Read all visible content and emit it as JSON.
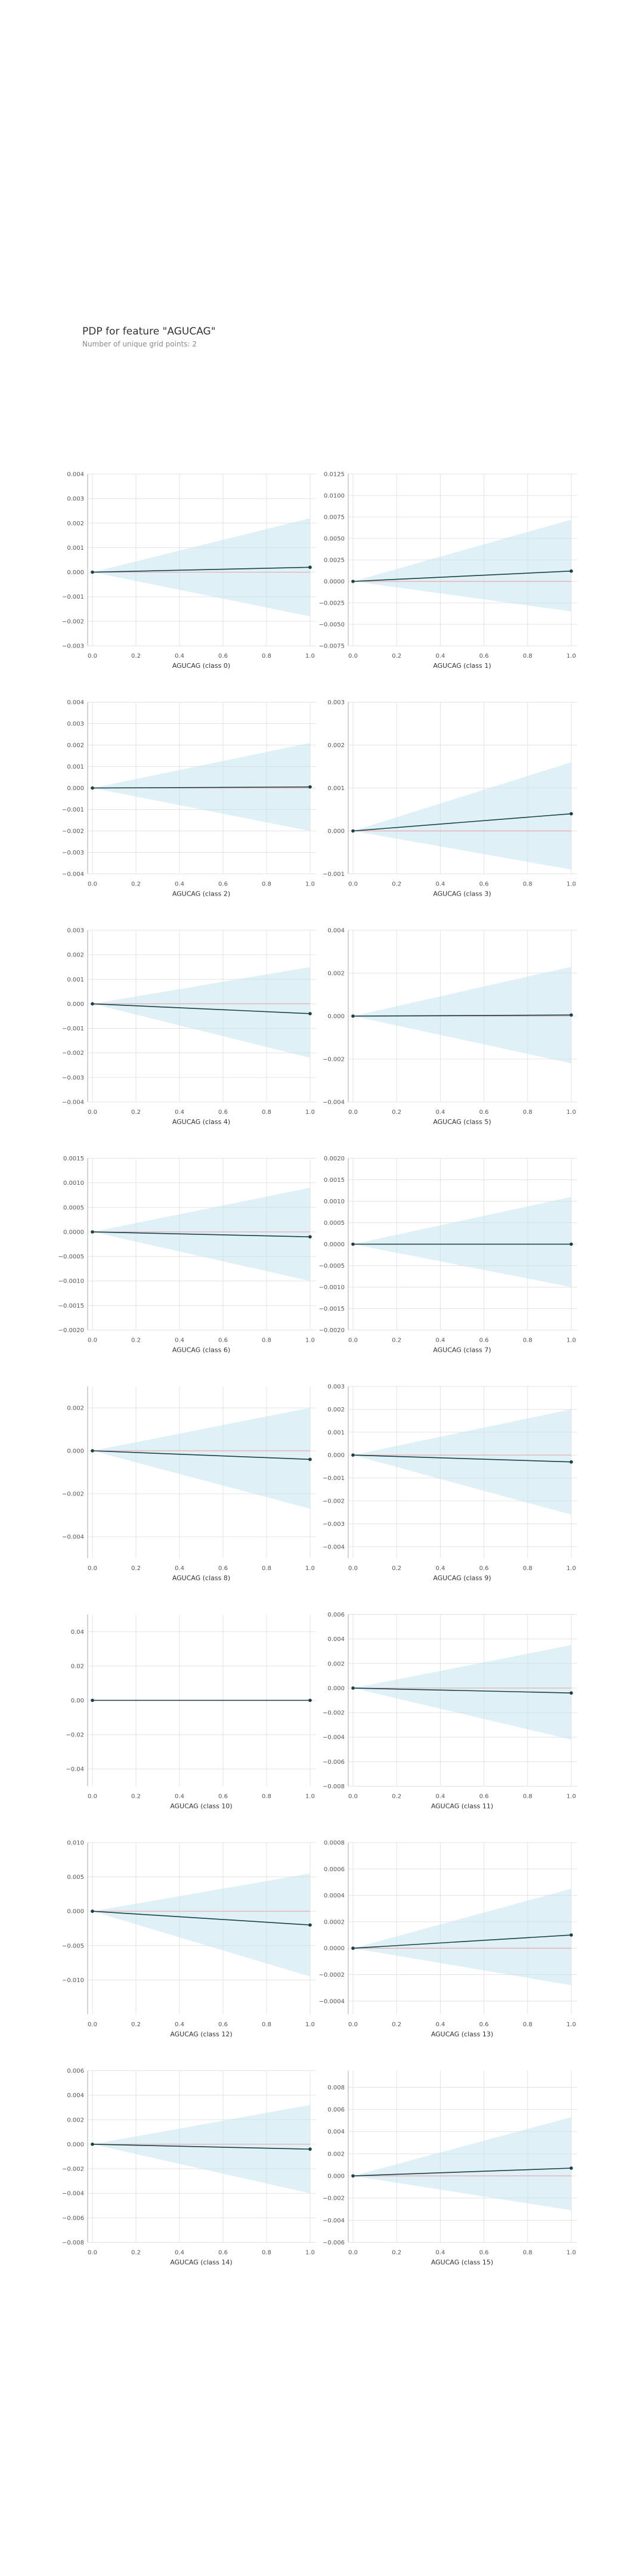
{
  "title": "PDP for feature \"AGUCAG\"",
  "subtitle": "Number of unique grid points: 2",
  "colors": {
    "line": "#1a4148",
    "band": "#bfe3ef",
    "zero": "#e8a9a9",
    "grid": "#e3e3e3",
    "axis": "#a9a9a9"
  },
  "chart_data": [
    {
      "type": "line",
      "xlabel": "AGUCAG (class 0)",
      "x": [
        0,
        1
      ],
      "y": [
        0.0,
        0.0002
      ],
      "band_lower": [
        0,
        -0.0018
      ],
      "band_upper": [
        0,
        0.0022
      ],
      "xticks": [
        0,
        0.2,
        0.4,
        0.6,
        0.8,
        1.0
      ],
      "xtick_labels": [
        "0.0",
        "0.2",
        "0.4",
        "0.6",
        "0.8",
        "1.0"
      ],
      "ylim": [
        -0.003,
        0.004
      ],
      "yticks": [
        -0.003,
        -0.002,
        -0.001,
        0,
        0.001,
        0.002,
        0.003,
        0.004
      ],
      "ytick_labels": [
        "−0.003",
        "−0.002",
        "−0.001",
        "0.000",
        "0.001",
        "0.002",
        "0.003",
        "0.004"
      ]
    },
    {
      "type": "line",
      "xlabel": "AGUCAG (class 1)",
      "x": [
        0,
        1
      ],
      "y": [
        0.0,
        0.0012
      ],
      "band_lower": [
        0,
        -0.0035
      ],
      "band_upper": [
        0,
        0.0072
      ],
      "xticks": [
        0,
        0.2,
        0.4,
        0.6,
        0.8,
        1.0
      ],
      "xtick_labels": [
        "0.0",
        "0.2",
        "0.4",
        "0.6",
        "0.8",
        "1.0"
      ],
      "ylim": [
        -0.0075,
        0.0125
      ],
      "yticks": [
        -0.0075,
        -0.005,
        -0.0025,
        0,
        0.0025,
        0.005,
        0.0075,
        0.01,
        0.0125
      ],
      "ytick_labels": [
        "−0.0075",
        "−0.0050",
        "−0.0025",
        "0.0000",
        "0.0025",
        "0.0050",
        "0.0075",
        "0.0100",
        "0.0125"
      ]
    },
    {
      "type": "line",
      "xlabel": "AGUCAG (class 2)",
      "x": [
        0,
        1
      ],
      "y": [
        0.0,
        5e-05
      ],
      "band_lower": [
        0,
        -0.002
      ],
      "band_upper": [
        0,
        0.0021
      ],
      "xticks": [
        0,
        0.2,
        0.4,
        0.6,
        0.8,
        1.0
      ],
      "xtick_labels": [
        "0.0",
        "0.2",
        "0.4",
        "0.6",
        "0.8",
        "1.0"
      ],
      "ylim": [
        -0.004,
        0.004
      ],
      "yticks": [
        -0.004,
        -0.003,
        -0.002,
        -0.001,
        0,
        0.001,
        0.002,
        0.003,
        0.004
      ],
      "ytick_labels": [
        "−0.004",
        "−0.003",
        "−0.002",
        "−0.001",
        "0.000",
        "0.001",
        "0.002",
        "0.003",
        "0.004"
      ]
    },
    {
      "type": "line",
      "xlabel": "AGUCAG (class 3)",
      "x": [
        0,
        1
      ],
      "y": [
        0.0,
        0.0004
      ],
      "band_lower": [
        0,
        -0.0009
      ],
      "band_upper": [
        0,
        0.0016
      ],
      "xticks": [
        0,
        0.2,
        0.4,
        0.6,
        0.8,
        1.0
      ],
      "xtick_labels": [
        "0.0",
        "0.2",
        "0.4",
        "0.6",
        "0.8",
        "1.0"
      ],
      "ylim": [
        -0.001,
        0.003
      ],
      "yticks": [
        -0.001,
        0,
        0.001,
        0.002,
        0.003
      ],
      "ytick_labels": [
        "−0.001",
        "0.000",
        "0.001",
        "0.002",
        "0.003"
      ]
    },
    {
      "type": "line",
      "xlabel": "AGUCAG (class 4)",
      "x": [
        0,
        1
      ],
      "y": [
        0.0,
        -0.0004
      ],
      "band_lower": [
        0,
        -0.0022
      ],
      "band_upper": [
        0,
        0.0015
      ],
      "xticks": [
        0,
        0.2,
        0.4,
        0.6,
        0.8,
        1.0
      ],
      "xtick_labels": [
        "0.0",
        "0.2",
        "0.4",
        "0.6",
        "0.8",
        "1.0"
      ],
      "ylim": [
        -0.004,
        0.003
      ],
      "yticks": [
        -0.004,
        -0.003,
        -0.002,
        -0.001,
        0,
        0.001,
        0.002,
        0.003
      ],
      "ytick_labels": [
        "−0.004",
        "−0.003",
        "−0.002",
        "−0.001",
        "0.000",
        "0.001",
        "0.002",
        "0.003"
      ]
    },
    {
      "type": "line",
      "xlabel": "AGUCAG (class 5)",
      "x": [
        0,
        1
      ],
      "y": [
        0.0,
        5e-05
      ],
      "band_lower": [
        0,
        -0.0022
      ],
      "band_upper": [
        0,
        0.0023
      ],
      "xticks": [
        0,
        0.2,
        0.4,
        0.6,
        0.8,
        1.0
      ],
      "xtick_labels": [
        "0.0",
        "0.2",
        "0.4",
        "0.6",
        "0.8",
        "1.0"
      ],
      "ylim": [
        -0.004,
        0.004
      ],
      "yticks": [
        -0.004,
        -0.002,
        0,
        0.002,
        0.004
      ],
      "ytick_labels": [
        "−0.004",
        "−0.002",
        "0.000",
        "0.002",
        "0.004"
      ]
    },
    {
      "type": "line",
      "xlabel": "AGUCAG (class 6)",
      "x": [
        0,
        1
      ],
      "y": [
        0.0,
        -0.0001
      ],
      "band_lower": [
        0,
        -0.001
      ],
      "band_upper": [
        0,
        0.0009
      ],
      "xticks": [
        0,
        0.2,
        0.4,
        0.6,
        0.8,
        1.0
      ],
      "xtick_labels": [
        "0.0",
        "0.2",
        "0.4",
        "0.6",
        "0.8",
        "1.0"
      ],
      "ylim": [
        -0.002,
        0.0015
      ],
      "yticks": [
        -0.002,
        -0.0015,
        -0.001,
        -0.0005,
        0,
        0.0005,
        0.001,
        0.0015
      ],
      "ytick_labels": [
        "−0.0020",
        "−0.0015",
        "−0.0010",
        "−0.0005",
        "0.0000",
        "0.0005",
        "0.0010",
        "0.0015"
      ]
    },
    {
      "type": "line",
      "xlabel": "AGUCAG (class 7)",
      "x": [
        0,
        1
      ],
      "y": [
        0.0,
        0.0
      ],
      "band_lower": [
        0,
        -0.001
      ],
      "band_upper": [
        0,
        0.0011
      ],
      "xticks": [
        0,
        0.2,
        0.4,
        0.6,
        0.8,
        1.0
      ],
      "xtick_labels": [
        "0.0",
        "0.2",
        "0.4",
        "0.6",
        "0.8",
        "1.0"
      ],
      "ylim": [
        -0.002,
        0.002
      ],
      "yticks": [
        -0.002,
        -0.0015,
        -0.001,
        -0.0005,
        0,
        0.0005,
        0.001,
        0.0015,
        0.002
      ],
      "ytick_labels": [
        "−0.0020",
        "−0.0015",
        "−0.0010",
        "−0.0005",
        "0.0000",
        "0.0005",
        "0.0010",
        "0.0015",
        "0.0020"
      ]
    },
    {
      "type": "line",
      "xlabel": "AGUCAG (class 8)",
      "x": [
        0,
        1
      ],
      "y": [
        0.0,
        -0.0004
      ],
      "band_lower": [
        0,
        -0.0027
      ],
      "band_upper": [
        0,
        0.002
      ],
      "xticks": [
        0,
        0.2,
        0.4,
        0.6,
        0.8,
        1.0
      ],
      "xtick_labels": [
        "0.0",
        "0.2",
        "0.4",
        "0.6",
        "0.8",
        "1.0"
      ],
      "ylim": [
        -0.005,
        0.003
      ],
      "yticks": [
        -0.004,
        -0.002,
        0,
        0.002
      ],
      "ytick_labels": [
        "−0.004",
        "−0.002",
        "0.000",
        "0.002"
      ]
    },
    {
      "type": "line",
      "xlabel": "AGUCAG (class 9)",
      "x": [
        0,
        1
      ],
      "y": [
        0.0,
        -0.0003
      ],
      "band_lower": [
        0,
        -0.0026
      ],
      "band_upper": [
        0,
        0.002
      ],
      "xticks": [
        0,
        0.2,
        0.4,
        0.6,
        0.8,
        1.0
      ],
      "xtick_labels": [
        "0.0",
        "0.2",
        "0.4",
        "0.6",
        "0.8",
        "1.0"
      ],
      "ylim": [
        -0.0045,
        0.003
      ],
      "yticks": [
        -0.004,
        -0.003,
        -0.002,
        -0.001,
        0,
        0.001,
        0.002,
        0.003
      ],
      "ytick_labels": [
        "−0.004",
        "−0.003",
        "−0.002",
        "−0.001",
        "0.000",
        "0.001",
        "0.002",
        "0.003"
      ]
    },
    {
      "type": "line",
      "xlabel": "AGUCAG (class 10)",
      "x": [
        0,
        1
      ],
      "y": [
        0.0,
        0.0
      ],
      "band_lower": [
        0,
        0.0
      ],
      "band_upper": [
        0,
        0.0
      ],
      "xticks": [
        0,
        0.2,
        0.4,
        0.6,
        0.8,
        1.0
      ],
      "xtick_labels": [
        "0.0",
        "0.2",
        "0.4",
        "0.6",
        "0.8",
        "1.0"
      ],
      "ylim": [
        -0.05,
        0.05
      ],
      "yticks": [
        -0.04,
        -0.02,
        0,
        0.02,
        0.04
      ],
      "ytick_labels": [
        "−0.04",
        "−0.02",
        "0.00",
        "0.02",
        "0.04"
      ]
    },
    {
      "type": "line",
      "xlabel": "AGUCAG (class 11)",
      "x": [
        0,
        1
      ],
      "y": [
        0.0,
        -0.0004
      ],
      "band_lower": [
        0,
        -0.0042
      ],
      "band_upper": [
        0,
        0.0035
      ],
      "xticks": [
        0,
        0.2,
        0.4,
        0.6,
        0.8,
        1.0
      ],
      "xtick_labels": [
        "0.0",
        "0.2",
        "0.4",
        "0.6",
        "0.8",
        "1.0"
      ],
      "ylim": [
        -0.008,
        0.006
      ],
      "yticks": [
        -0.008,
        -0.006,
        -0.004,
        -0.002,
        0,
        0.002,
        0.004,
        0.006
      ],
      "ytick_labels": [
        "−0.008",
        "−0.006",
        "−0.004",
        "−0.002",
        "0.000",
        "0.002",
        "0.004",
        "0.006"
      ]
    },
    {
      "type": "line",
      "xlabel": "AGUCAG (class 12)",
      "x": [
        0,
        1
      ],
      "y": [
        0.0,
        -0.002
      ],
      "band_lower": [
        0,
        -0.0095
      ],
      "band_upper": [
        0,
        0.0055
      ],
      "xticks": [
        0,
        0.2,
        0.4,
        0.6,
        0.8,
        1.0
      ],
      "xtick_labels": [
        "0.0",
        "0.2",
        "0.4",
        "0.6",
        "0.8",
        "1.0"
      ],
      "ylim": [
        -0.015,
        0.01
      ],
      "yticks": [
        -0.01,
        -0.005,
        0,
        0.005,
        0.01
      ],
      "ytick_labels": [
        "−0.010",
        "−0.005",
        "0.000",
        "0.005",
        "0.010"
      ]
    },
    {
      "type": "line",
      "xlabel": "AGUCAG (class 13)",
      "x": [
        0,
        1
      ],
      "y": [
        0.0,
        0.0001
      ],
      "band_lower": [
        0,
        -0.00028
      ],
      "band_upper": [
        0,
        0.00045
      ],
      "xticks": [
        0,
        0.2,
        0.4,
        0.6,
        0.8,
        1.0
      ],
      "xtick_labels": [
        "0.0",
        "0.2",
        "0.4",
        "0.6",
        "0.8",
        "1.0"
      ],
      "ylim": [
        -0.0005,
        0.0008
      ],
      "yticks": [
        -0.0004,
        -0.0002,
        0,
        0.0002,
        0.0004,
        0.0006,
        0.0008
      ],
      "ytick_labels": [
        "−0.0004",
        "−0.0002",
        "0.0000",
        "0.0002",
        "0.0004",
        "0.0006",
        "0.0008"
      ]
    },
    {
      "type": "line",
      "xlabel": "AGUCAG (class 14)",
      "x": [
        0,
        1
      ],
      "y": [
        0.0,
        -0.0004
      ],
      "band_lower": [
        0,
        -0.004
      ],
      "band_upper": [
        0,
        0.0032
      ],
      "xticks": [
        0,
        0.2,
        0.4,
        0.6,
        0.8,
        1.0
      ],
      "xtick_labels": [
        "0.0",
        "0.2",
        "0.4",
        "0.6",
        "0.8",
        "1.0"
      ],
      "ylim": [
        -0.008,
        0.006
      ],
      "yticks": [
        -0.008,
        -0.006,
        -0.004,
        -0.002,
        0,
        0.002,
        0.004,
        0.006
      ],
      "ytick_labels": [
        "−0.008",
        "−0.006",
        "−0.004",
        "−0.002",
        "0.000",
        "0.002",
        "0.004",
        "0.006"
      ]
    },
    {
      "type": "line",
      "xlabel": "AGUCAG (class 15)",
      "x": [
        0,
        1
      ],
      "y": [
        0.0,
        0.0007
      ],
      "band_lower": [
        0,
        -0.0031
      ],
      "band_upper": [
        0,
        0.0053
      ],
      "xticks": [
        0,
        0.2,
        0.4,
        0.6,
        0.8,
        1.0
      ],
      "xtick_labels": [
        "0.0",
        "0.2",
        "0.4",
        "0.6",
        "0.8",
        "1.0"
      ],
      "ylim": [
        -0.006,
        0.0095
      ],
      "yticks": [
        -0.006,
        -0.004,
        -0.002,
        0,
        0.002,
        0.004,
        0.006,
        0.008
      ],
      "ytick_labels": [
        "−0.006",
        "−0.004",
        "−0.002",
        "0.000",
        "0.002",
        "0.004",
        "0.006",
        "0.008"
      ]
    }
  ]
}
